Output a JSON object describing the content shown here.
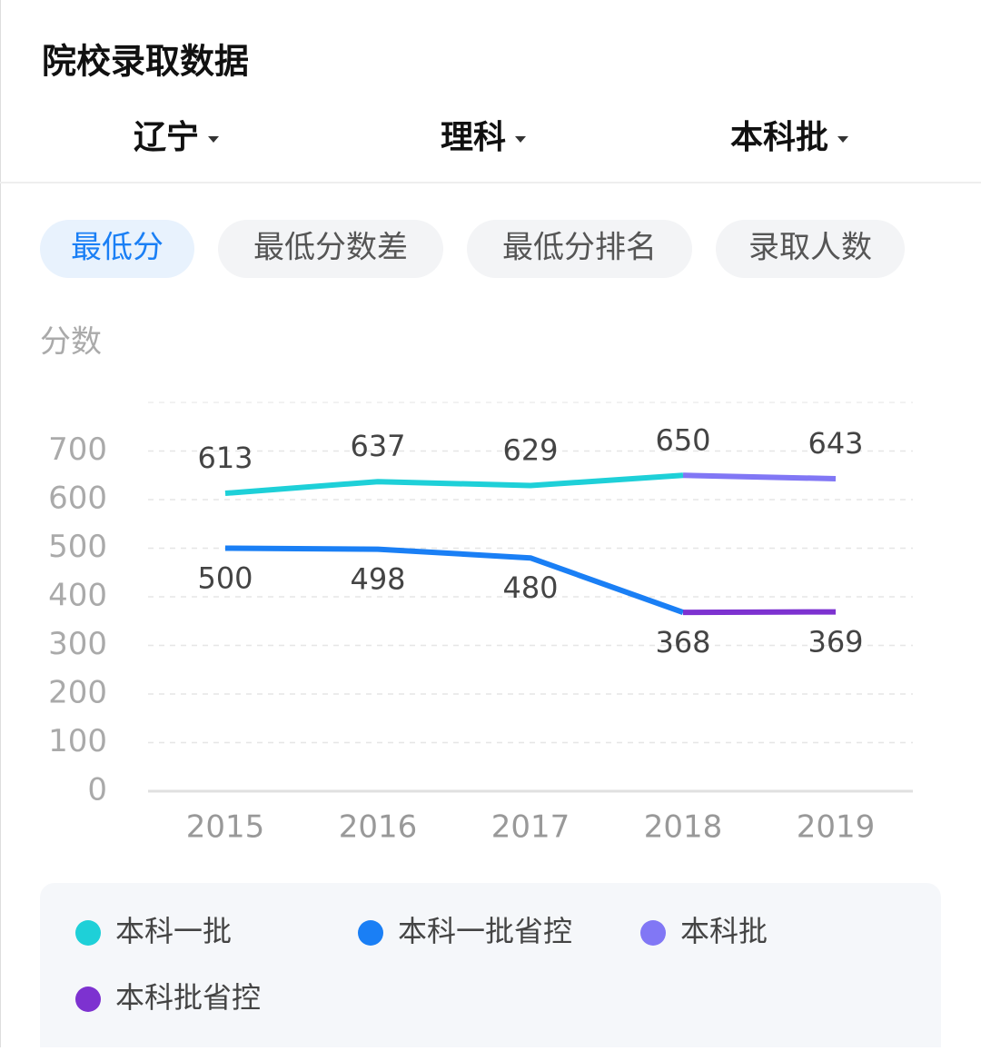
{
  "header": {
    "title": "院校录取数据"
  },
  "filters": [
    "辽宁",
    "理科",
    "本科批"
  ],
  "tabs": [
    "最低分",
    "最低分数差",
    "最低分排名",
    "录取人数"
  ],
  "chart_data": {
    "type": "line",
    "y_label": "分数",
    "categories": [
      "2015",
      "2016",
      "2017",
      "2018",
      "2019"
    ],
    "ylim": [
      0,
      800
    ],
    "yticks": [
      0,
      100,
      200,
      300,
      400,
      500,
      600,
      700
    ],
    "grid": true,
    "series": [
      {
        "name": "本科一批",
        "color": "#1ed0d8",
        "values": [
          613,
          637,
          629,
          650,
          null
        ],
        "label_side": "above"
      },
      {
        "name": "本科一批省控",
        "color": "#1a7ff5",
        "values": [
          500,
          498,
          480,
          368,
          null
        ],
        "label_side": "below"
      },
      {
        "name": "本科批",
        "color": "#8177f5",
        "values": [
          null,
          null,
          null,
          650,
          643
        ],
        "label_side": "above"
      },
      {
        "name": "本科批省控",
        "color": "#7d32d0",
        "values": [
          null,
          null,
          null,
          368,
          369
        ],
        "label_side": "below"
      }
    ]
  }
}
